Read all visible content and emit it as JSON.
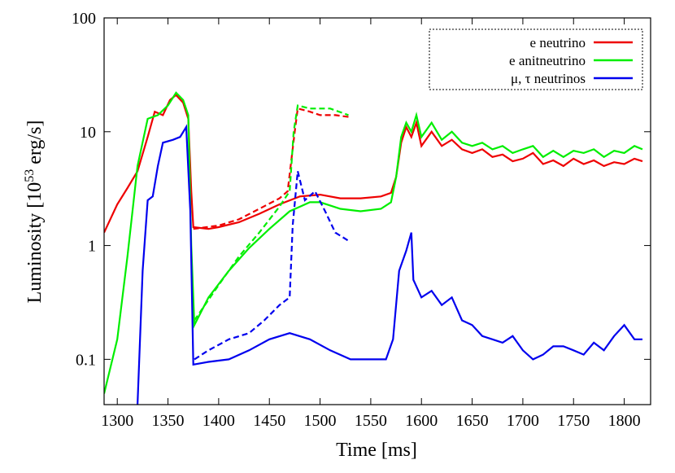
{
  "chart_data": {
    "type": "line",
    "xlabel": "Time [ms]",
    "ylabel": {
      "text": "Luminosity [10",
      "sup": "53",
      "tail": " erg/s]"
    },
    "log_y": true,
    "legend": "top-right",
    "xlim": [
      1287,
      1826
    ],
    "ylim": [
      0.04,
      100
    ],
    "xticks": [
      1300,
      1350,
      1400,
      1450,
      1500,
      1550,
      1600,
      1650,
      1700,
      1750,
      1800
    ],
    "yticks": [
      0.1,
      1,
      10,
      100
    ],
    "series": [
      {
        "name": "e neutrino",
        "color": "#ee0000",
        "dash": false,
        "x": [
          1287,
          1300,
          1310,
          1320,
          1330,
          1337,
          1345,
          1352,
          1358,
          1365,
          1370,
          1373,
          1375,
          1390,
          1400,
          1420,
          1440,
          1460,
          1480,
          1500,
          1520,
          1540,
          1560,
          1570,
          1575,
          1580,
          1585,
          1590,
          1595,
          1600,
          1610,
          1620,
          1630,
          1640,
          1650,
          1660,
          1670,
          1680,
          1690,
          1700,
          1710,
          1720,
          1730,
          1740,
          1750,
          1760,
          1770,
          1780,
          1790,
          1800,
          1810,
          1818
        ],
        "values": [
          1.3,
          2.3,
          3.2,
          4.5,
          9,
          15,
          14,
          19,
          21,
          18,
          13,
          3,
          1.45,
          1.4,
          1.45,
          1.6,
          1.9,
          2.3,
          2.7,
          2.8,
          2.6,
          2.6,
          2.7,
          2.9,
          4,
          8,
          11,
          9,
          12,
          7.5,
          10,
          7.5,
          8.5,
          7,
          6.5,
          7,
          6,
          6.3,
          5.5,
          5.8,
          6.5,
          5.2,
          5.6,
          5,
          5.8,
          5.2,
          5.6,
          5,
          5.4,
          5.2,
          5.8,
          5.5
        ]
      },
      {
        "name": "e anitneutrino",
        "color": "#00ee00",
        "dash": false,
        "x": [
          1287,
          1300,
          1310,
          1320,
          1330,
          1340,
          1350,
          1358,
          1365,
          1370,
          1373,
          1376,
          1390,
          1410,
          1430,
          1450,
          1470,
          1490,
          1500,
          1520,
          1540,
          1560,
          1570,
          1575,
          1580,
          1585,
          1590,
          1595,
          1600,
          1610,
          1620,
          1630,
          1640,
          1650,
          1660,
          1670,
          1680,
          1690,
          1700,
          1710,
          1720,
          1730,
          1740,
          1750,
          1760,
          1770,
          1780,
          1790,
          1800,
          1810,
          1818
        ],
        "values": [
          0.05,
          0.15,
          0.8,
          5,
          13,
          14,
          17,
          22,
          19,
          14,
          1,
          0.2,
          0.35,
          0.6,
          0.95,
          1.4,
          2,
          2.4,
          2.4,
          2.1,
          2,
          2.1,
          2.4,
          4,
          9,
          12,
          10,
          14,
          9,
          12,
          8.5,
          10,
          8,
          7.5,
          8,
          7,
          7.5,
          6.5,
          7,
          7.5,
          6,
          6.8,
          6,
          6.8,
          6.5,
          7,
          6,
          6.8,
          6.5,
          7.5,
          7
        ]
      },
      {
        "name": "μ, τ neutrinos",
        "color": "#0000ee",
        "dash": false,
        "x": [
          1320,
          1325,
          1330,
          1335,
          1340,
          1345,
          1355,
          1362,
          1368,
          1372,
          1375,
          1390,
          1410,
          1430,
          1450,
          1470,
          1490,
          1510,
          1530,
          1550,
          1565,
          1572,
          1578,
          1585,
          1590,
          1592,
          1600,
          1610,
          1620,
          1630,
          1640,
          1650,
          1660,
          1670,
          1680,
          1690,
          1700,
          1710,
          1720,
          1730,
          1740,
          1750,
          1760,
          1770,
          1780,
          1790,
          1800,
          1810,
          1818
        ],
        "values": [
          0.04,
          0.6,
          2.5,
          2.7,
          5,
          8,
          8.5,
          9,
          11,
          2,
          0.09,
          0.095,
          0.1,
          0.12,
          0.15,
          0.17,
          0.15,
          0.12,
          0.1,
          0.1,
          0.1,
          0.15,
          0.6,
          0.9,
          1.3,
          0.5,
          0.35,
          0.4,
          0.3,
          0.35,
          0.22,
          0.2,
          0.16,
          0.15,
          0.14,
          0.16,
          0.12,
          0.1,
          0.11,
          0.13,
          0.13,
          0.12,
          0.11,
          0.14,
          0.12,
          0.16,
          0.2,
          0.15,
          0.15
        ]
      },
      {
        "color": "#ee0000",
        "dash": true,
        "x": [
          1375,
          1400,
          1420,
          1440,
          1460,
          1468,
          1475,
          1478,
          1490,
          1500,
          1515,
          1528
        ],
        "values": [
          1.4,
          1.5,
          1.7,
          2.1,
          2.6,
          3,
          10,
          16,
          15,
          14,
          14,
          13.5
        ]
      },
      {
        "color": "#00ee00",
        "dash": true,
        "x": [
          1376,
          1400,
          1420,
          1440,
          1460,
          1470,
          1474,
          1478,
          1490,
          1510,
          1528
        ],
        "values": [
          0.22,
          0.45,
          0.8,
          1.3,
          2.2,
          3,
          10,
          17,
          16,
          16,
          14
        ]
      },
      {
        "color": "#0000ee",
        "dash": true,
        "x": [
          1376,
          1390,
          1410,
          1430,
          1445,
          1460,
          1470,
          1473,
          1478,
          1485,
          1495,
          1505,
          1515,
          1528
        ],
        "values": [
          0.1,
          0.12,
          0.15,
          0.17,
          0.22,
          0.3,
          0.35,
          1.5,
          4.5,
          2.5,
          3,
          2,
          1.3,
          1.1
        ]
      }
    ]
  }
}
